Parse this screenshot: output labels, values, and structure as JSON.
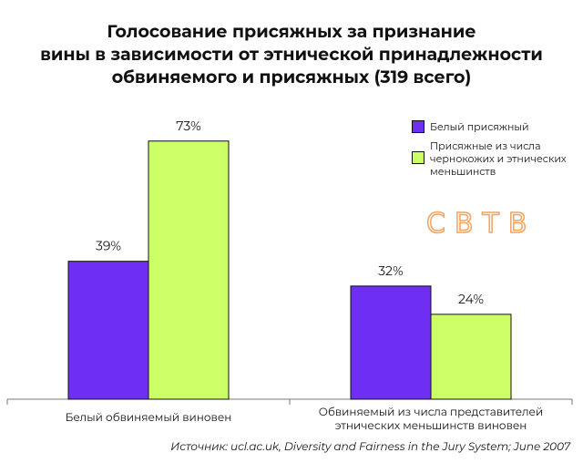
{
  "chart_data": {
    "type": "bar",
    "title": "Голосование присяжных за признание\nвины в зависимости от этнической принадлежности\nобвиняемого и присяжных (319 всего)",
    "categories": [
      "Белый обвиняемый виновен",
      "Обвиняемый из числа представителей\nэтнических меньшинств виновен"
    ],
    "series": [
      {
        "name": "Белый присяжный",
        "color": "#6e2ff2",
        "values": [
          39,
          32
        ],
        "value_labels": [
          "39%",
          "32%"
        ]
      },
      {
        "name": "Присяжные из числа\nчернокожих и этнических\nменьшинств",
        "color": "#ccff66",
        "values": [
          73,
          24
        ],
        "value_labels": [
          "73%",
          "24%"
        ]
      }
    ],
    "legend": "top-right",
    "logo": "СВТВ",
    "source": "Источник: ucl.ac.uk, Diversity and Fairness in the Jury System; June 2007"
  }
}
